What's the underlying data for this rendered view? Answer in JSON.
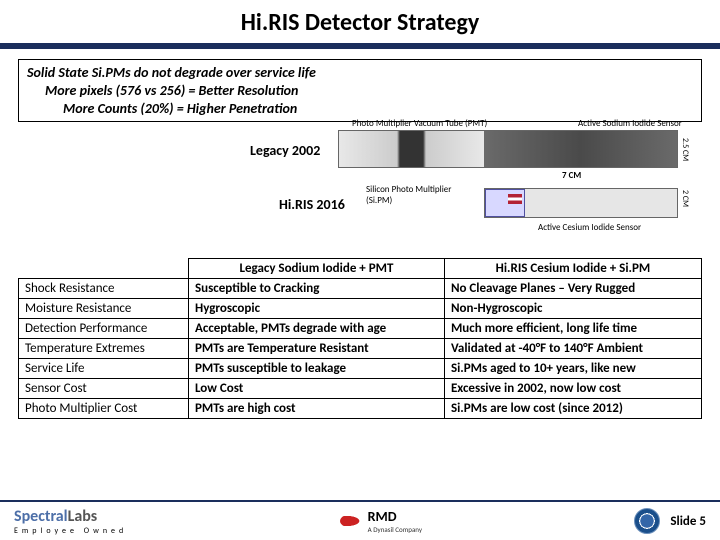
{
  "title": "Hi.RIS Detector Strategy",
  "intro": {
    "line1": "Solid State Si.PMs do not degrade over service life",
    "line2": "More pixels (576 vs 256) = Better Resolution",
    "line3": "More Counts (20%) = Higher Penetration"
  },
  "diagram": {
    "legacy_label": "Legacy 2002",
    "hiris_label": "Hi.RIS 2016",
    "pmt_label": "Photo Multiplier Vacuum Tube (PMT)",
    "nai_label": "Active Sodium Iodide Sensor",
    "sipm_label": "Silicon Photo Multiplier (Si.PM)",
    "csi_label": "Active Cesium Iodide Sensor",
    "dim_7cm": "7 CM",
    "dim_25cm": "2.5 CM",
    "dim_2cm": "2 CM"
  },
  "table": {
    "headers": [
      "",
      "Legacy Sodium Iodide + PMT",
      "Hi.RIS Cesium Iodide + Si.PM"
    ],
    "rows": [
      [
        "Shock Resistance",
        "Susceptible to Cracking",
        "No Cleavage Planes – Very Rugged"
      ],
      [
        "Moisture Resistance",
        "Hygroscopic",
        "Non-Hygroscopic"
      ],
      [
        "Detection Performance",
        "Acceptable, PMTs degrade with age",
        "Much more efficient, long life time"
      ],
      [
        "Temperature Extremes",
        "PMTs are Temperature Resistant",
        "Validated at -40°F to 140°F Ambient"
      ],
      [
        "Service Life",
        "PMTs susceptible to leakage",
        "Si.PMs aged to 10+ years, like new"
      ],
      [
        "Sensor Cost",
        "Low Cost",
        "Excessive in 2002, now low cost"
      ],
      [
        "Photo Multiplier Cost",
        "PMTs are high cost",
        "Si.PMs are low cost (since 2012)"
      ]
    ]
  },
  "footer": {
    "spectral_a": "Spectral",
    "spectral_b": "Labs",
    "spectral_sub": "Employee Owned",
    "rmd": "RMD",
    "rmd_sub": "A Dynasil Company",
    "slide": "Slide 5"
  }
}
